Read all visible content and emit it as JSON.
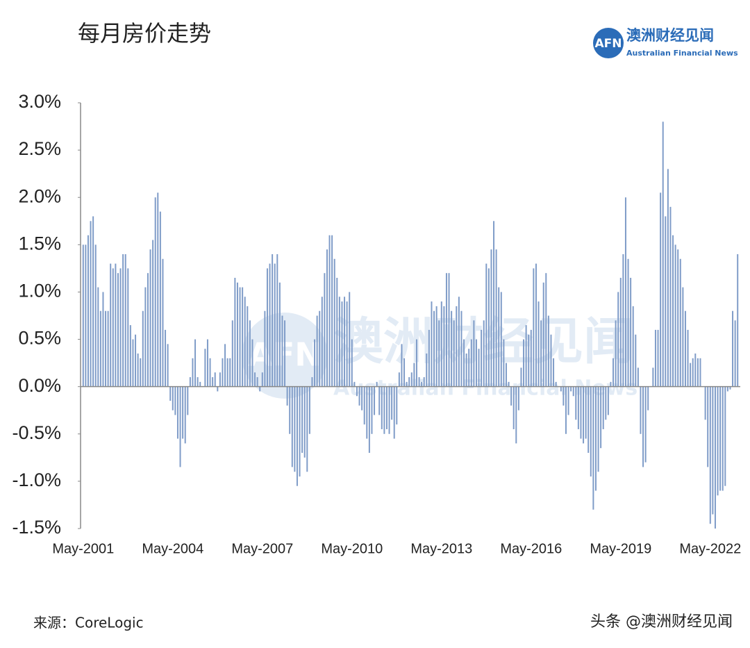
{
  "header": {
    "title": "每月房价走势",
    "logo_mark": "AFN",
    "logo_name": "澳洲财经见闻",
    "logo_subtitle": "Australian Financial News"
  },
  "footer": {
    "source": "来源：CoreLogic",
    "credit": "头条 @澳洲财经见闻"
  },
  "chart_data": {
    "type": "bar",
    "color": "#7f9cc8",
    "grid": false,
    "ylim": [
      -1.5,
      3.0
    ],
    "yticks": [
      {
        "value": 3.0,
        "label": "3.0%"
      },
      {
        "value": 2.5,
        "label": "2.5%"
      },
      {
        "value": 2.0,
        "label": "2.0%"
      },
      {
        "value": 1.5,
        "label": "1.5%"
      },
      {
        "value": 1.0,
        "label": "1.0%"
      },
      {
        "value": 0.5,
        "label": "0.5%"
      },
      {
        "value": 0.0,
        "label": "0.0%"
      },
      {
        "value": -0.5,
        "label": "-0.5%"
      },
      {
        "value": -1.0,
        "label": "-1.0%"
      },
      {
        "value": -1.5,
        "label": "-1.5%"
      }
    ],
    "categories": [
      "May-2001",
      null,
      null,
      null,
      null,
      null,
      null,
      null,
      null,
      null,
      null,
      null,
      null,
      null,
      null,
      null,
      null,
      null,
      null,
      null,
      null,
      null,
      null,
      null,
      null,
      null,
      null,
      null,
      null,
      null,
      null,
      null,
      null,
      null,
      null,
      null,
      "May-2004",
      null,
      null,
      null,
      null,
      null,
      null,
      null,
      null,
      null,
      null,
      null,
      null,
      null,
      null,
      null,
      null,
      null,
      null,
      null,
      null,
      null,
      null,
      null,
      null,
      null,
      null,
      null,
      null,
      null,
      null,
      null,
      null,
      null,
      null,
      null,
      "May-2007",
      null,
      null,
      null,
      null,
      null,
      null,
      null,
      null,
      null,
      null,
      null,
      null,
      null,
      null,
      null,
      null,
      null,
      null,
      null,
      null,
      null,
      null,
      null,
      null,
      null,
      null,
      null,
      null,
      null,
      null,
      null,
      null,
      null,
      null,
      null,
      "May-2010",
      null,
      null,
      null,
      null,
      null,
      null,
      null,
      null,
      null,
      null,
      null,
      null,
      null,
      null,
      null,
      null,
      null,
      null,
      null,
      null,
      null,
      null,
      null,
      null,
      null,
      null,
      null,
      null,
      null,
      null,
      null,
      null,
      null,
      null,
      null,
      "May-2013",
      null,
      null,
      null,
      null,
      null,
      null,
      null,
      null,
      null,
      null,
      null,
      null,
      null,
      null,
      null,
      null,
      null,
      null,
      null,
      null,
      null,
      null,
      null,
      null,
      null,
      null,
      null,
      null,
      null,
      null,
      null,
      null,
      null,
      null,
      null,
      "May-2016",
      null,
      null,
      null,
      null,
      null,
      null,
      null,
      null,
      null,
      null,
      null,
      null,
      null,
      null,
      null,
      null,
      null,
      null,
      null,
      null,
      null,
      null,
      null,
      null,
      null,
      null,
      null,
      null,
      null,
      null,
      null,
      null,
      null,
      null,
      null,
      "May-2019",
      null,
      null,
      null,
      null,
      null,
      null,
      null,
      null,
      null,
      null,
      null,
      null,
      null,
      null,
      null,
      null,
      null,
      null,
      null,
      null,
      null,
      null,
      null,
      null,
      null,
      null,
      null,
      null,
      null,
      null,
      null,
      null,
      null,
      null,
      null,
      "May-2022",
      null,
      null,
      null,
      null,
      null,
      null,
      null,
      null,
      null,
      null,
      null
    ],
    "values": [
      1.5,
      1.5,
      1.6,
      1.75,
      1.8,
      1.5,
      1.05,
      0.8,
      1.0,
      0.8,
      0.8,
      1.3,
      1.25,
      1.3,
      1.2,
      1.25,
      1.4,
      1.4,
      1.25,
      0.65,
      0.5,
      0.55,
      0.35,
      0.3,
      0.8,
      1.05,
      1.2,
      1.45,
      1.55,
      2.0,
      2.05,
      1.85,
      1.35,
      0.6,
      0.45,
      -0.15,
      -0.25,
      -0.3,
      -0.55,
      -0.85,
      -0.55,
      -0.6,
      -0.3,
      0.1,
      0.3,
      0.5,
      0.1,
      0.05,
      0.0,
      0.4,
      0.5,
      0.3,
      0.1,
      0.15,
      -0.05,
      0.15,
      0.3,
      0.45,
      0.3,
      0.3,
      0.7,
      1.15,
      1.1,
      1.05,
      1.05,
      0.95,
      0.85,
      0.7,
      0.5,
      0.15,
      0.1,
      -0.05,
      0.15,
      0.8,
      1.25,
      1.3,
      1.4,
      1.3,
      1.4,
      1.1,
      0.75,
      0.7,
      -0.2,
      -0.5,
      -0.85,
      -0.9,
      -1.05,
      -0.95,
      -0.7,
      -0.75,
      -0.9,
      -0.5,
      0.1,
      0.5,
      0.75,
      0.8,
      0.95,
      1.2,
      1.45,
      1.6,
      1.6,
      1.35,
      1.15,
      0.95,
      0.9,
      0.95,
      0.9,
      1.0,
      0.5,
      0.05,
      -0.1,
      -0.2,
      -0.25,
      -0.4,
      -0.55,
      -0.7,
      -0.5,
      -0.3,
      0.05,
      -0.3,
      -0.45,
      -0.5,
      -0.45,
      -0.5,
      -0.35,
      -0.55,
      -0.4,
      0.15,
      0.45,
      0.3,
      0.05,
      0.1,
      0.15,
      0.25,
      0.5,
      0.1,
      0.05,
      0.1,
      0.35,
      0.6,
      0.9,
      0.8,
      0.85,
      0.7,
      0.9,
      0.85,
      1.2,
      1.2,
      0.8,
      0.7,
      0.85,
      0.95,
      0.8,
      0.5,
      0.35,
      0.4,
      0.5,
      0.7,
      0.5,
      0.4,
      0.6,
      0.7,
      1.3,
      1.25,
      1.45,
      1.75,
      1.45,
      1.05,
      1.0,
      0.5,
      0.25,
      0.05,
      -0.2,
      -0.45,
      -0.6,
      -0.25,
      0.2,
      0.5,
      0.65,
      0.55,
      0.6,
      1.25,
      1.3,
      0.9,
      0.7,
      1.1,
      1.2,
      0.75,
      0.55,
      0.3,
      0.05,
      0.0,
      -0.05,
      -0.2,
      -0.5,
      -0.3,
      -0.05,
      -0.1,
      -0.35,
      -0.45,
      -0.55,
      -0.6,
      -0.55,
      -0.7,
      -0.95,
      -1.3,
      -1.1,
      -0.9,
      -0.65,
      -0.45,
      -0.35,
      -0.3,
      0.05,
      0.3,
      0.7,
      1.0,
      1.15,
      1.4,
      2.0,
      1.35,
      1.15,
      0.85,
      0.55,
      0.2,
      -0.5,
      -0.85,
      -0.8,
      -0.25,
      0.0,
      0.2,
      0.6,
      0.6,
      2.05,
      2.8,
      1.8,
      2.3,
      1.9,
      1.6,
      1.5,
      1.45,
      1.35,
      1.05,
      0.8,
      0.6,
      0.25,
      0.3,
      0.35,
      0.3,
      0.3,
      0.0,
      -0.35,
      -0.85,
      -1.45,
      -1.35,
      -1.5,
      -1.15,
      -1.1,
      -1.1,
      -1.05,
      -0.05,
      -0.03,
      0.8,
      0.7,
      1.4
    ]
  }
}
